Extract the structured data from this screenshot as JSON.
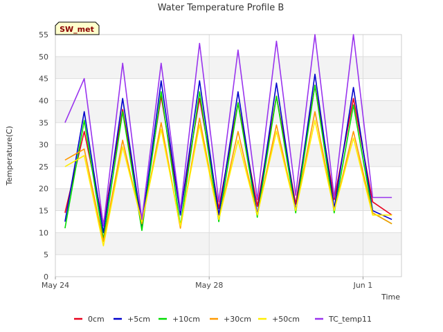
{
  "chart_data": {
    "type": "line",
    "title": "Water Temperature Profile B",
    "xlabel": "Time",
    "ylabel": "Temperature(C)",
    "site_badge": "SW_met",
    "ylim": [
      0,
      55
    ],
    "y_ticks": [
      0,
      5,
      10,
      15,
      20,
      25,
      30,
      35,
      40,
      45,
      50,
      55
    ],
    "xlim": [
      "2024-05-24",
      "2024-06-02"
    ],
    "x_ticks": [
      {
        "label": "May 24",
        "x": "2024-05-24"
      },
      {
        "label": "May 28",
        "x": "2024-05-28"
      },
      {
        "label": "Jun 1",
        "x": "2024-06-01"
      }
    ],
    "grid": true,
    "legend_position": "bottom",
    "x": [
      "2024-05-24 06:00",
      "2024-05-24 18:00",
      "2024-05-25 06:00",
      "2024-05-25 18:00",
      "2024-05-26 06:00",
      "2024-05-26 18:00",
      "2024-05-27 06:00",
      "2024-05-27 18:00",
      "2024-05-28 06:00",
      "2024-05-28 18:00",
      "2024-05-29 06:00",
      "2024-05-29 18:00",
      "2024-05-30 06:00",
      "2024-05-30 18:00",
      "2024-05-31 06:00",
      "2024-05-31 18:00",
      "2024-06-01 06:00",
      "2024-06-01 18:00"
    ],
    "series": [
      {
        "name": "0cm",
        "color": "#e8001c",
        "values": [
          14.5,
          33.0,
          12.0,
          38.0,
          12.5,
          41.0,
          14.5,
          40.5,
          15.5,
          39.5,
          16.0,
          41.0,
          16.5,
          43.5,
          17.5,
          40.5,
          17.0,
          14.0
        ]
      },
      {
        "name": "+5cm",
        "color": "#0000cc",
        "values": [
          12.5,
          37.5,
          10.0,
          40.5,
          11.5,
          44.5,
          14.0,
          44.5,
          14.0,
          42.0,
          14.0,
          44.0,
          15.0,
          46.0,
          15.5,
          43.0,
          15.0,
          13.0
        ]
      },
      {
        "name": "+10cm",
        "color": "#00dd00",
        "values": [
          11.0,
          35.5,
          8.5,
          37.5,
          10.5,
          42.0,
          11.5,
          42.0,
          12.5,
          39.5,
          13.5,
          41.0,
          14.5,
          43.5,
          14.5,
          39.0,
          14.5,
          12.0
        ]
      },
      {
        "name": "+30cm",
        "color": "#ff9900",
        "values": [
          26.5,
          29.0,
          8.0,
          31.0,
          12.0,
          35.0,
          11.0,
          36.0,
          13.0,
          33.0,
          14.0,
          34.5,
          15.0,
          37.5,
          15.0,
          33.0,
          14.5,
          12.0
        ]
      },
      {
        "name": "+50cm",
        "color": "#ffee00",
        "values": [
          25.0,
          27.5,
          7.0,
          29.5,
          12.5,
          33.5,
          11.5,
          34.5,
          13.0,
          31.0,
          14.0,
          33.0,
          15.0,
          35.5,
          15.0,
          31.5,
          14.0,
          14.0
        ]
      },
      {
        "name": "TC_temp11",
        "color": "#9933ee",
        "values": [
          35.0,
          45.0,
          11.5,
          48.5,
          13.0,
          48.5,
          15.0,
          53.0,
          17.0,
          51.5,
          17.5,
          53.5,
          18.5,
          55.0,
          18.0,
          55.0,
          18.0,
          18.0
        ]
      }
    ]
  }
}
